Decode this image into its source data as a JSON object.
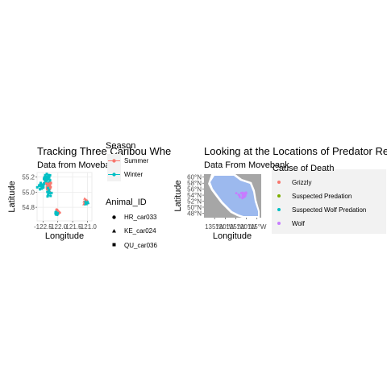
{
  "chart_data": [
    {
      "type": "scatter",
      "title": "Tracking Three Caribou Whe",
      "subtitle": "Data from Movebank",
      "xlabel": "Longitude",
      "ylabel": "Latitude",
      "xlim": [
        -122.7,
        -120.85
      ],
      "ylim": [
        54.62,
        55.26
      ],
      "x_ticks": [
        -122.5,
        -122.0,
        -121.5,
        -121.0
      ],
      "x_tick_labels": [
        "-122.5",
        "-122.0",
        "-121.5",
        "-121.0"
      ],
      "y_ticks": [
        54.8,
        55.0,
        55.2
      ],
      "y_tick_labels": [
        "54.8",
        "55.0",
        "55.2"
      ],
      "grid": true,
      "colors": {
        "Summer": "#F8766D",
        "Winter": "#00BFC4"
      },
      "legend_season": {
        "title": "Season",
        "items": [
          "Summer",
          "Winter"
        ]
      },
      "legend_animal": {
        "title": "Animal_ID",
        "items": [
          "HR_car033",
          "KE_car024",
          "QU_car036"
        ],
        "shapes": [
          "circle",
          "triangle",
          "square"
        ]
      },
      "clusters": [
        {
          "animal": "QU_car036",
          "season": "Winter",
          "cx": -122.55,
          "cy": 55.08,
          "sx": 0.07,
          "sy": 0.03,
          "n": 18
        },
        {
          "animal": "QU_car036",
          "season": "Winter",
          "cx": -122.35,
          "cy": 55.18,
          "sx": 0.06,
          "sy": 0.03,
          "n": 24
        },
        {
          "animal": "QU_car036",
          "season": "Summer",
          "cx": -122.3,
          "cy": 55.07,
          "sx": 0.04,
          "sy": 0.035,
          "n": 22
        },
        {
          "animal": "QU_car036",
          "season": "Winter",
          "cx": -122.3,
          "cy": 54.98,
          "sx": 0.05,
          "sy": 0.03,
          "n": 10
        },
        {
          "animal": "HR_car033",
          "season": "Summer",
          "cx": -122.02,
          "cy": 54.74,
          "sx": 0.04,
          "sy": 0.02,
          "n": 14
        },
        {
          "animal": "HR_car033",
          "season": "Winter",
          "cx": -122.05,
          "cy": 54.71,
          "sx": 0.03,
          "sy": 0.015,
          "n": 8
        },
        {
          "animal": "KE_car024",
          "season": "Summer",
          "cx": -121.05,
          "cy": 54.87,
          "sx": 0.04,
          "sy": 0.02,
          "n": 12
        },
        {
          "animal": "KE_car024",
          "season": "Winter",
          "cx": -121.03,
          "cy": 54.86,
          "sx": 0.03,
          "sy": 0.015,
          "n": 10
        }
      ]
    },
    {
      "type": "scatter",
      "title": "Looking at the Locations of Predator Re",
      "subtitle": "Data From Movebank",
      "xlabel": "Longitude",
      "ylabel": "Latitude",
      "x_tick_labels": [
        "135°W",
        "130°W",
        "125°W",
        "120°W",
        "115°W"
      ],
      "x_ticks": [
        -135,
        -130,
        -125,
        -120,
        -115
      ],
      "x_tick_labels_drawn": [
        "135°W",
        "130°W",
        "125°W",
        "120°W",
        "115°W"
      ],
      "xlim": [
        -140,
        -113
      ],
      "ylim": [
        46.5,
        61
      ],
      "y_ticks": [
        48,
        50,
        52,
        54,
        56,
        58,
        60
      ],
      "y_tick_labels": [
        "48°N",
        "50°N",
        "52°N",
        "54°N",
        "56°N",
        "58°N",
        "60°N"
      ],
      "grid": false,
      "colors": {
        "Grizzly": "#F8766D",
        "Suspected Predation": "#7CAE00",
        "Suspected Wolf Predation": "#00BFC4",
        "Wolf": "#C77CFF"
      },
      "legend": {
        "title": "Cause of Death",
        "items": [
          "Grizzly",
          "Suspected Predation",
          "Suspected Wolf Predation",
          "Wolf"
        ]
      },
      "clusters": [
        {
          "cause": "Wolf",
          "cx": -122.0,
          "cy": 54.0,
          "sx": 1.2,
          "sy": 0.6,
          "n": 25
        },
        {
          "cause": "Wolf",
          "cx": -121.0,
          "cy": 54.5,
          "sx": 0.8,
          "sy": 0.4,
          "n": 10
        }
      ]
    }
  ]
}
